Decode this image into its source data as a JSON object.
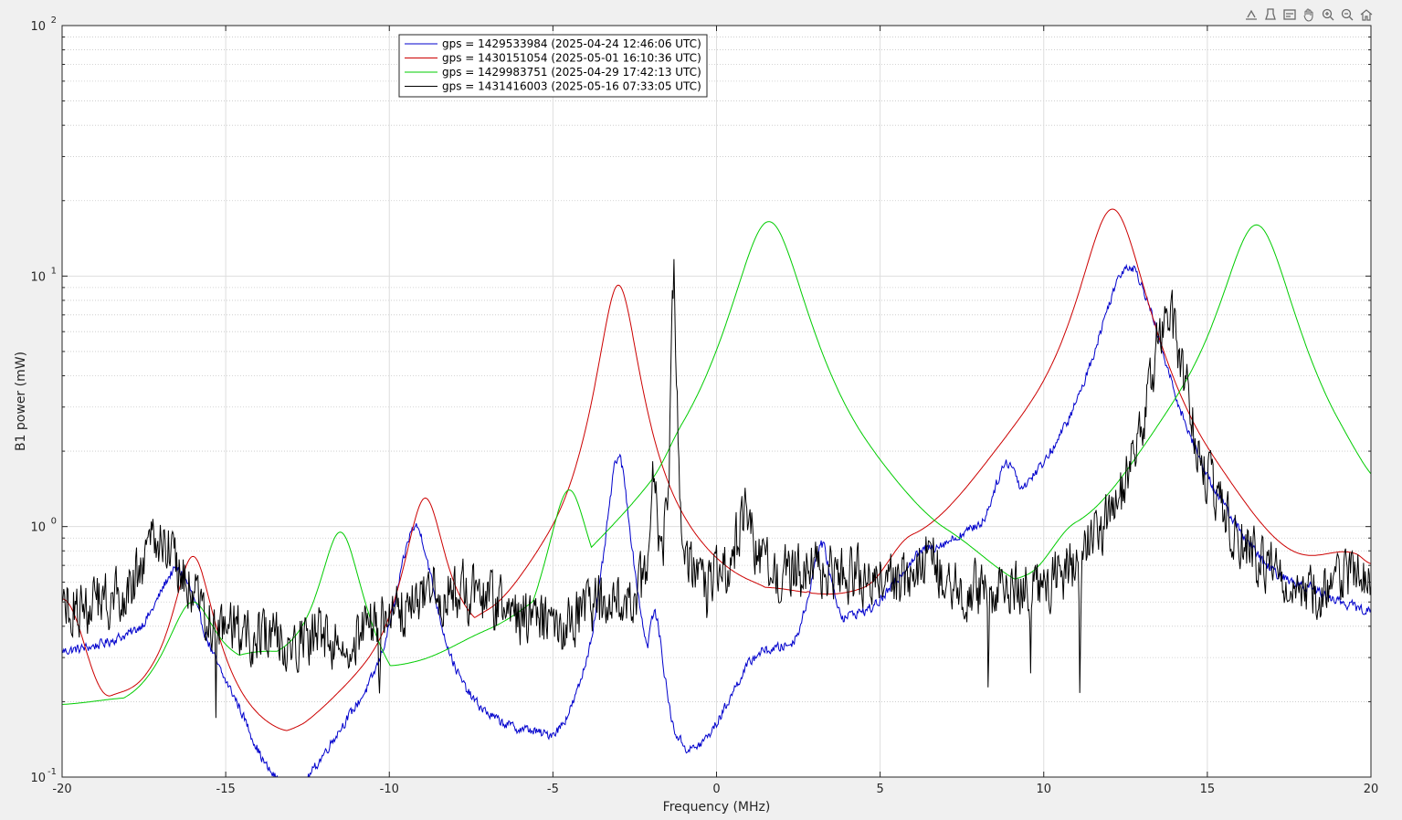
{
  "toolbar": {
    "buttons": [
      {
        "name": "export-icon"
      },
      {
        "name": "brush-icon"
      },
      {
        "name": "datatip-icon"
      },
      {
        "name": "pan-icon"
      },
      {
        "name": "zoom-in-icon"
      },
      {
        "name": "zoom-out-icon"
      },
      {
        "name": "home-icon"
      }
    ]
  },
  "chart_data": {
    "type": "line",
    "title": "",
    "xlabel": "Frequency (MHz)",
    "ylabel": "B1 power (mW)",
    "xlim": [
      -20,
      20
    ],
    "ylim": [
      0.1,
      100
    ],
    "yscale": "log",
    "grid": true,
    "minor_grid": true,
    "legend_position": "top-left",
    "xticks": [
      -20,
      -15,
      -10,
      -5,
      0,
      5,
      10,
      15,
      20
    ],
    "xtick_labels": [
      "-20",
      "-15",
      "-10",
      "-5",
      "0",
      "5",
      "10",
      "15",
      "20"
    ],
    "yticks": [
      0.1,
      1,
      10,
      100
    ],
    "ytick_labels": [
      {
        "base": "10",
        "exp": "-1"
      },
      {
        "base": "10",
        "exp": "0"
      },
      {
        "base": "10",
        "exp": "1"
      },
      {
        "base": "10",
        "exp": "2"
      }
    ],
    "series": [
      {
        "name": "gps = 1429533984 (2025-04-24 12:46:06 UTC)",
        "color": "#0000cc",
        "peaks": [
          {
            "x": -16.5,
            "h": 0.67,
            "w": 0.8
          },
          {
            "x": -9.2,
            "h": 1.0,
            "w": 0.55
          },
          {
            "x": -3.0,
            "h": 1.9,
            "w": 0.35
          },
          {
            "x": -2.6,
            "h": 0.55,
            "w": 0.3
          },
          {
            "x": -1.9,
            "h": 0.45,
            "w": 0.3
          },
          {
            "x": 3.2,
            "h": 0.85,
            "w": 0.35
          },
          {
            "x": 8.9,
            "h": 1.8,
            "w": 0.55
          },
          {
            "x": 12.6,
            "h": 11.0,
            "w": 0.9
          },
          {
            "x": 19.4,
            "h": 0.38,
            "w": 0.6
          }
        ],
        "valleys": [
          {
            "x": -18.5,
            "v": 0.3
          },
          {
            "x": -15,
            "v": 0.12
          },
          {
            "x": -13.5,
            "v": 0.06
          },
          {
            "x": -10.8,
            "v": 0.12
          },
          {
            "x": -6,
            "v": 0.13
          },
          {
            "x": -4.6,
            "v": 0.09
          },
          {
            "x": -0.8,
            "v": 0.08
          },
          {
            "x": 1.5,
            "v": 0.25
          },
          {
            "x": 4.5,
            "v": 0.33
          },
          {
            "x": 6.5,
            "v": 0.6
          },
          {
            "x": 10.2,
            "v": 0.72
          },
          {
            "x": 15.5,
            "v": 0.28
          },
          {
            "x": 16.8,
            "v": 0.23
          },
          {
            "x": 18.3,
            "v": 0.3
          },
          {
            "x": 20,
            "v": 0.3
          }
        ],
        "noise": 0.06
      },
      {
        "name": "gps = 1430151054 (2025-05-01 16:10:36 UTC)",
        "color": "#cc0000",
        "peaks": [
          {
            "x": -16.0,
            "h": 0.76,
            "w": 0.6
          },
          {
            "x": -8.9,
            "h": 1.3,
            "w": 0.6
          },
          {
            "x": -3.0,
            "h": 9.2,
            "w": 0.55
          },
          {
            "x": -0.7,
            "h": 0.7,
            "w": 0.6
          },
          {
            "x": 2.8,
            "h": 0.55,
            "w": 0.4
          },
          {
            "x": 8.8,
            "h": 2.1,
            "w": 0.6
          },
          {
            "x": 12.1,
            "h": 18.5,
            "w": 0.9
          }
        ],
        "valleys": [
          {
            "x": -20,
            "v": 0.5
          },
          {
            "x": -18.5,
            "v": 0.18
          },
          {
            "x": -17.5,
            "v": 0.17
          },
          {
            "x": -13.5,
            "v": 0.125
          },
          {
            "x": -10.5,
            "v": 0.18
          },
          {
            "x": -7,
            "v": 0.3
          },
          {
            "x": -5,
            "v": 0.4
          },
          {
            "x": -1.5,
            "v": 0.5
          },
          {
            "x": 1,
            "v": 0.45
          },
          {
            "x": 4.5,
            "v": 0.32
          },
          {
            "x": 6,
            "v": 0.55
          },
          {
            "x": 9.7,
            "v": 1.15
          },
          {
            "x": 15,
            "v": 0.5
          },
          {
            "x": 17.3,
            "v": 0.32
          },
          {
            "x": 19.5,
            "v": 0.52
          },
          {
            "x": 20,
            "v": 0.48
          }
        ],
        "noise": 0.0
      },
      {
        "name": "gps = 1429983751 (2025-04-29 17:42:13 UTC)",
        "color": "#00cc00",
        "peaks": [
          {
            "x": -16.0,
            "h": 0.5,
            "w": 0.8
          },
          {
            "x": -11.5,
            "h": 0.95,
            "w": 0.65
          },
          {
            "x": -4.5,
            "h": 1.4,
            "w": 0.65
          },
          {
            "x": 1.6,
            "h": 16.5,
            "w": 1.0
          },
          {
            "x": 13.3,
            "h": 1.8,
            "w": 0.6
          },
          {
            "x": 16.5,
            "h": 16.0,
            "w": 1.0
          }
        ],
        "valleys": [
          {
            "x": -20,
            "v": 0.16
          },
          {
            "x": -18,
            "v": 0.165
          },
          {
            "x": -14,
            "v": 0.25
          },
          {
            "x": -9,
            "v": 0.15
          },
          {
            "x": -7,
            "v": 0.17
          },
          {
            "x": -2,
            "v": 0.37
          },
          {
            "x": -1,
            "v": 0.6
          },
          {
            "x": 4.5,
            "v": 0.6
          },
          {
            "x": 7,
            "v": 0.45
          },
          {
            "x": 9.5,
            "v": 0.33
          },
          {
            "x": 11,
            "v": 0.55
          },
          {
            "x": 14.4,
            "v": 1.2
          },
          {
            "x": 19,
            "v": 0.55
          },
          {
            "x": 20,
            "v": 0.45
          }
        ],
        "noise": 0.0
      },
      {
        "name": "gps = 1431416003 (2025-05-16 07:33:05 UTC)",
        "color": "#000000",
        "peaks": [
          {
            "x": -17.0,
            "h": 0.9,
            "w": 0.7
          },
          {
            "x": -1.3,
            "h": 10.5,
            "w": 0.06
          },
          {
            "x": -1.9,
            "h": 1.8,
            "w": 0.1
          },
          {
            "x": 0.9,
            "h": 1.1,
            "w": 0.3
          },
          {
            "x": 6.5,
            "h": 0.75,
            "w": 0.4
          },
          {
            "x": 13.8,
            "h": 6.8,
            "w": 0.55
          }
        ],
        "valleys": [
          {
            "x": -20,
            "v": 0.45
          },
          {
            "x": -15,
            "v": 0.33
          },
          {
            "x": -12,
            "v": 0.35
          },
          {
            "x": -8,
            "v": 0.55
          },
          {
            "x": -5,
            "v": 0.4
          },
          {
            "x": -3,
            "v": 0.5
          },
          {
            "x": 0,
            "v": 0.6
          },
          {
            "x": 3,
            "v": 0.65
          },
          {
            "x": 8,
            "v": 0.5
          },
          {
            "x": 10,
            "v": 0.45
          },
          {
            "x": 12,
            "v": 0.55
          },
          {
            "x": 16,
            "v": 0.5
          },
          {
            "x": 18,
            "v": 0.45
          },
          {
            "x": 20,
            "v": 0.62
          }
        ],
        "noise": 0.35,
        "dips": [
          {
            "x": -10.3,
            "v": 0.2
          },
          {
            "x": 8.3,
            "v": 0.26
          },
          {
            "x": 9.6,
            "v": 0.2
          },
          {
            "x": 11.1,
            "v": 0.17
          },
          {
            "x": -0.3,
            "v": 0.32
          },
          {
            "x": -15.3,
            "v": 0.19
          }
        ]
      }
    ]
  }
}
